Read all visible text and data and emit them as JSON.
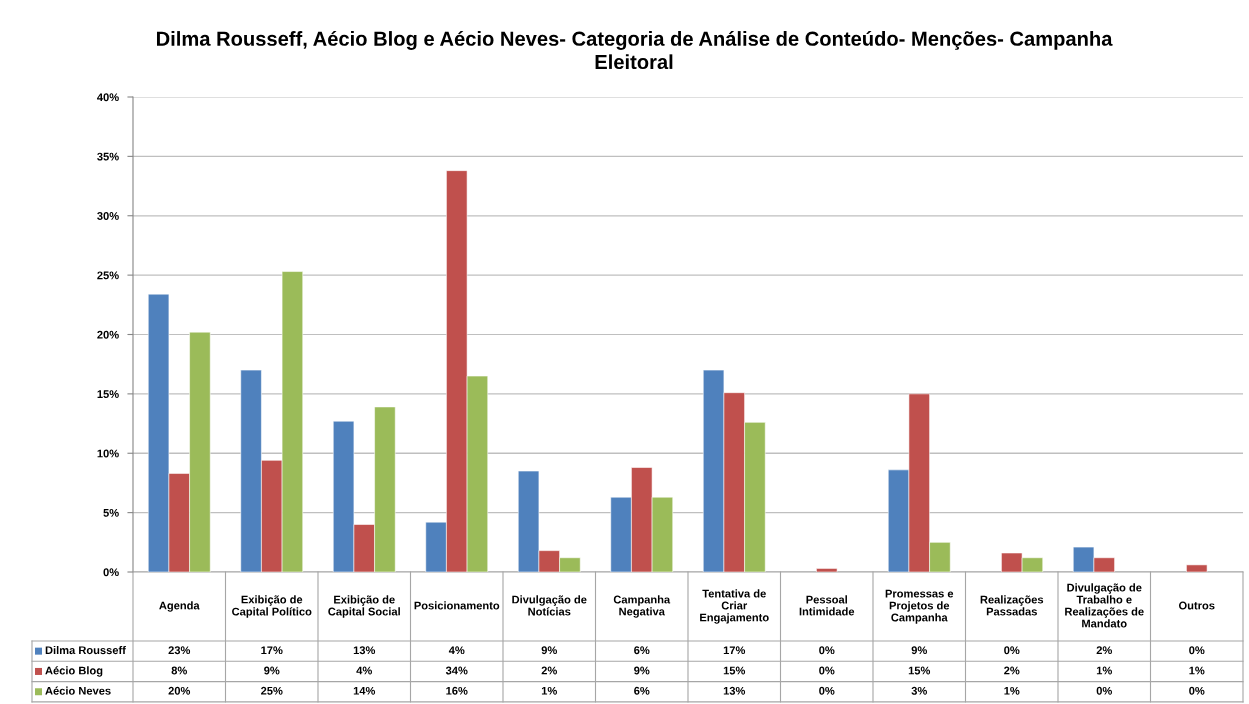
{
  "chart_data": {
    "type": "bar",
    "title": "Dilma Rousseff, Aécio Blog e Aécio Neves- Categoria de Análise de Conteúdo- Menções- Campanha Eleitoral",
    "categories": [
      "Agenda",
      "Exibição de Capital Político",
      "Exibição de Capital Social",
      "Posicionamento",
      "Divulgação de Notícias",
      "Campanha Negativa",
      "Tentativa de Criar Engajamento",
      "Pessoal Intimidade",
      "Promessas e Projetos de Campanha",
      "Realizações Passadas",
      "Divulgação de Trabalho e Realizações de Mandato",
      "Outros"
    ],
    "series": [
      {
        "name": "Dilma Rousseff",
        "color": "#4f81bd",
        "values": [
          23.4,
          17.0,
          12.7,
          4.2,
          8.5,
          6.3,
          17.0,
          0,
          8.6,
          0,
          2.1,
          0
        ],
        "value_labels": [
          "23%",
          "17%",
          "13%",
          "4%",
          "9%",
          "6%",
          "17%",
          "0%",
          "9%",
          "0%",
          "2%",
          "0%"
        ]
      },
      {
        "name": "Aécio Blog",
        "color": "#c0504d",
        "values": [
          8.3,
          9.4,
          4.0,
          33.8,
          1.8,
          8.8,
          15.1,
          0.3,
          15.0,
          1.6,
          1.2,
          0.6
        ],
        "value_labels": [
          "8%",
          "9%",
          "4%",
          "34%",
          "2%",
          "9%",
          "15%",
          "0%",
          "15%",
          "2%",
          "1%",
          "1%"
        ]
      },
      {
        "name": "Aécio Neves",
        "color": "#9bbb59",
        "values": [
          20.2,
          25.3,
          13.9,
          16.5,
          1.2,
          6.3,
          12.6,
          0,
          2.5,
          1.2,
          0,
          0
        ],
        "value_labels": [
          "20%",
          "25%",
          "14%",
          "16%",
          "1%",
          "6%",
          "13%",
          "0%",
          "3%",
          "1%",
          "0%",
          "0%"
        ]
      }
    ],
    "ylim": [
      0,
      40
    ],
    "yticks": [
      {
        "value": 0,
        "label": "0%"
      },
      {
        "value": 5,
        "label": "5%"
      },
      {
        "value": 10,
        "label": "10%"
      },
      {
        "value": 15,
        "label": "15%"
      },
      {
        "value": 20,
        "label": "20%"
      },
      {
        "value": 25,
        "label": "25%"
      },
      {
        "value": 30,
        "label": "30%"
      },
      {
        "value": 35,
        "label": "35%"
      },
      {
        "value": 40,
        "label": "40%"
      }
    ],
    "grid": "y",
    "legend": "bottom"
  }
}
